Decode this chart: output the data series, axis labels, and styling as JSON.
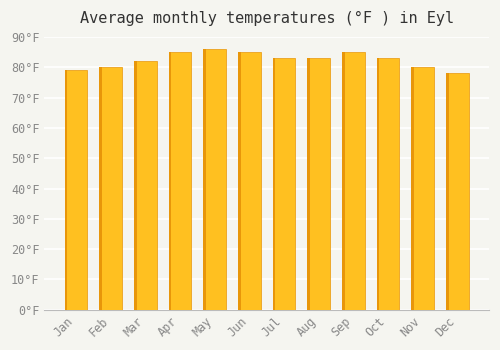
{
  "title": "Average monthly temperatures (°F ) in Eyl",
  "months": [
    "Jan",
    "Feb",
    "Mar",
    "Apr",
    "May",
    "Jun",
    "Jul",
    "Aug",
    "Sep",
    "Oct",
    "Nov",
    "Dec"
  ],
  "values": [
    79,
    80,
    82,
    85,
    86,
    85,
    83,
    83,
    85,
    83,
    80,
    78
  ],
  "bar_color_main": "#FFC020",
  "bar_color_edge": "#E8960A",
  "background_color": "#F5F5F0",
  "grid_color": "#FFFFFF",
  "ylim": [
    0,
    90
  ],
  "yticks": [
    0,
    10,
    20,
    30,
    40,
    50,
    60,
    70,
    80,
    90
  ],
  "ytick_labels": [
    "0°F",
    "10°F",
    "20°F",
    "30°F",
    "40°F",
    "50°F",
    "60°F",
    "70°F",
    "80°F",
    "90°F"
  ],
  "title_fontsize": 11,
  "tick_fontsize": 8.5,
  "font_color": "#888888"
}
